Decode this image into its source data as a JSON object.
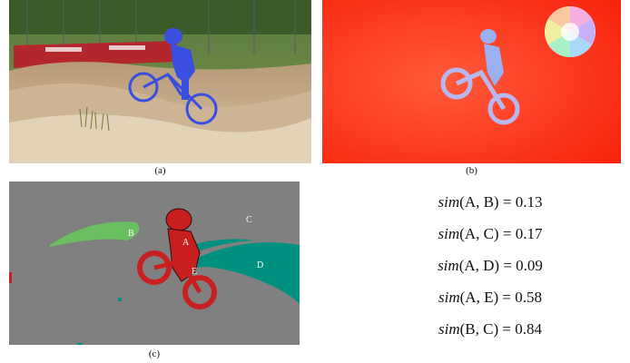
{
  "figure": {
    "panels": [
      {
        "id": "a",
        "caption": "(a)"
      },
      {
        "id": "b",
        "caption": "(b)"
      },
      {
        "id": "c",
        "caption": "(c)"
      }
    ],
    "segment_labels": [
      "A",
      "B",
      "C",
      "D",
      "E"
    ],
    "similarities": [
      {
        "fn": "sim",
        "args": "(A, B)",
        "value": "= 0.13"
      },
      {
        "fn": "sim",
        "args": "(A, C)",
        "value": "= 0.17"
      },
      {
        "fn": "sim",
        "args": "(A, D)",
        "value": "= 0.09"
      },
      {
        "fn": "sim",
        "args": "(A, E)",
        "value": "= 0.58"
      },
      {
        "fn": "sim",
        "args": "(B, C)",
        "value": "= 0.84"
      }
    ],
    "colors": {
      "overlay_blue": "#3a4fe0",
      "flow_red": "#ff2a10",
      "seg_gray": "#808080",
      "seg_red": "#c82020",
      "seg_green": "#6abf60",
      "seg_teal": "#009080"
    }
  }
}
